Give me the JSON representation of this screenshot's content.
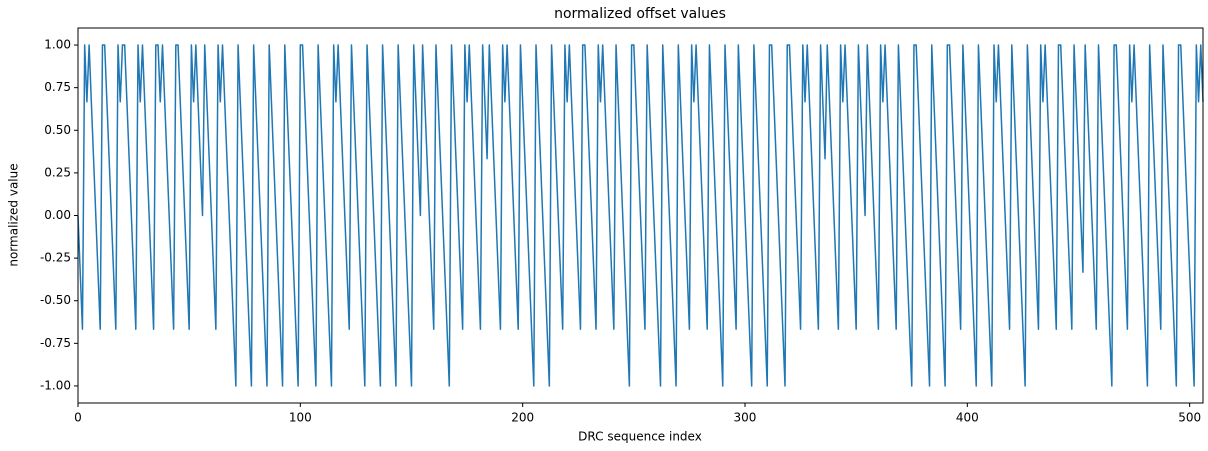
{
  "chart_data": {
    "type": "line",
    "title": "normalized offset values",
    "xlabel": "DRC sequence index",
    "ylabel": "normalized value",
    "color": "#1f77b4",
    "xlim": [
      0,
      506
    ],
    "ylim": [
      -1.1,
      1.1
    ],
    "xticks": [
      0,
      100,
      200,
      300,
      400,
      500
    ],
    "yticks": [
      {
        "value": -1,
        "label": "-1.00"
      },
      {
        "value": -0.75,
        "label": "-0.75"
      },
      {
        "value": -0.5,
        "label": "-0.50"
      },
      {
        "value": -0.25,
        "label": "-0.25"
      },
      {
        "value": 0,
        "label": "0.00"
      },
      {
        "value": 0.25,
        "label": "0.25"
      },
      {
        "value": 0.5,
        "label": "0.50"
      },
      {
        "value": 0.75,
        "label": "0.75"
      },
      {
        "value": 1,
        "label": "1.00"
      }
    ],
    "x": [
      0,
      1,
      2,
      3,
      4,
      5,
      6,
      7,
      8,
      9,
      10,
      11,
      12,
      13,
      14,
      15,
      16,
      17,
      18,
      19,
      20,
      21,
      22,
      23,
      24,
      25,
      26,
      27,
      28,
      29,
      30,
      31,
      32,
      33,
      34,
      35,
      36,
      37,
      38,
      39,
      40,
      41,
      42,
      43,
      44,
      45,
      46,
      47,
      48,
      49,
      50,
      51,
      52,
      53,
      54,
      55,
      56,
      57,
      58,
      59,
      60,
      61,
      62,
      63,
      64,
      65,
      66,
      67,
      68,
      69,
      70,
      71,
      72,
      73,
      74,
      75,
      76,
      77,
      78,
      79,
      80,
      81,
      82,
      83,
      84,
      85,
      86,
      87,
      88,
      89,
      90,
      91,
      92,
      93,
      94,
      95,
      96,
      97,
      98,
      99,
      100,
      101,
      102,
      103,
      104,
      105,
      106,
      107,
      108,
      109,
      110,
      111,
      112,
      113,
      114,
      115,
      116,
      117,
      118,
      119,
      120,
      121,
      122,
      123,
      124,
      125,
      126,
      127,
      128,
      129,
      130,
      131,
      132,
      133,
      134,
      135,
      136,
      137,
      138,
      139,
      140,
      141,
      142,
      143,
      144,
      145,
      146,
      147,
      148,
      149,
      150,
      151,
      152,
      153,
      154,
      155,
      156,
      157,
      158,
      159,
      160,
      161,
      162,
      163,
      164,
      165,
      166,
      167,
      168,
      169,
      170,
      171,
      172,
      173,
      174,
      175,
      176,
      177,
      178,
      179,
      180,
      181,
      182,
      183,
      184,
      185,
      186,
      187,
      188,
      189,
      190,
      191,
      192,
      193,
      194,
      195,
      196,
      197,
      198,
      199,
      200,
      201,
      202,
      203,
      204,
      205,
      206,
      207,
      208,
      209,
      210,
      211,
      212,
      213,
      214,
      215,
      216,
      217,
      218,
      219,
      220,
      221,
      222,
      223,
      224,
      225,
      226,
      227,
      228,
      229,
      230,
      231,
      232,
      233,
      234,
      235,
      236,
      237,
      238,
      239,
      240,
      241,
      242,
      243,
      244,
      245,
      246,
      247,
      248,
      249,
      250,
      251,
      252,
      253,
      254,
      255,
      256,
      257,
      258,
      259,
      260,
      261,
      262,
      263,
      264,
      265,
      266,
      267,
      268,
      269,
      270,
      271,
      272,
      273,
      274,
      275,
      276,
      277,
      278,
      279,
      280,
      281,
      282,
      283,
      284,
      285,
      286,
      287,
      288,
      289,
      290,
      291,
      292,
      293,
      294,
      295,
      296,
      297,
      298,
      299,
      300,
      301,
      302,
      303,
      304,
      305,
      306,
      307,
      308,
      309,
      310,
      311,
      312,
      313,
      314,
      315,
      316,
      317,
      318,
      319,
      320,
      321,
      322,
      323,
      324,
      325,
      326,
      327,
      328,
      329,
      330,
      331,
      332,
      333,
      334,
      335,
      336,
      337,
      338,
      339,
      340,
      341,
      342,
      343,
      344,
      345,
      346,
      347,
      348,
      349,
      350,
      351,
      352,
      353,
      354,
      355,
      356,
      357,
      358,
      359,
      360,
      361,
      362,
      363,
      364,
      365,
      366,
      367,
      368,
      369,
      370,
      371,
      372,
      373,
      374,
      375,
      376,
      377,
      378,
      379,
      380,
      381,
      382,
      383,
      384,
      385,
      386,
      387,
      388,
      389,
      390,
      391,
      392,
      393,
      394,
      395,
      396,
      397,
      398,
      399,
      400,
      401,
      402,
      403,
      404,
      405,
      406,
      407,
      408,
      409,
      410,
      411,
      412,
      413,
      414,
      415,
      416,
      417,
      418,
      419,
      420,
      421,
      422,
      423,
      424,
      425,
      426,
      427,
      428,
      429,
      430,
      431,
      432,
      433,
      434,
      435,
      436,
      437,
      438,
      439,
      440,
      441,
      442,
      443,
      444,
      445,
      446,
      447,
      448,
      449,
      450,
      451,
      452,
      453,
      454,
      455,
      456,
      457,
      458,
      459,
      460,
      461,
      462,
      463,
      464,
      465,
      466,
      467,
      468,
      469,
      470,
      471,
      472,
      473,
      474,
      475,
      476,
      477,
      478,
      479,
      480,
      481,
      482,
      483,
      484,
      485,
      486,
      487,
      488,
      489,
      490,
      491,
      492,
      493,
      494,
      495,
      496,
      497,
      498,
      499,
      500,
      501,
      502,
      503,
      504,
      505,
      506
    ],
    "values": [
      0,
      -0.333,
      -0.667,
      1,
      0.667,
      1,
      0.667,
      0.333,
      0,
      -0.333,
      -0.667,
      1,
      1,
      0.667,
      0.333,
      0,
      -0.333,
      -0.667,
      1,
      0.667,
      1,
      1,
      0.667,
      0.333,
      0,
      -0.333,
      -0.667,
      1,
      0.667,
      1,
      0.667,
      0.333,
      0,
      -0.333,
      -0.667,
      1,
      1,
      0.667,
      1,
      0.667,
      0.333,
      0,
      -0.333,
      -0.667,
      1,
      1,
      0.667,
      0.333,
      0,
      -0.333,
      -0.667,
      1,
      0.667,
      1,
      0.667,
      0.333,
      0,
      1,
      0.667,
      0.333,
      0,
      -0.333,
      -0.667,
      1,
      0.667,
      1,
      0.667,
      0.333,
      0,
      -0.333,
      -0.667,
      -1,
      1,
      0.667,
      0.333,
      0,
      -0.333,
      -0.667,
      -1,
      1,
      0.667,
      0.333,
      0,
      -0.333,
      -0.667,
      -1,
      1,
      0.667,
      0.333,
      0,
      -0.333,
      -0.667,
      -1,
      1,
      0.667,
      0.333,
      0,
      -0.333,
      -0.667,
      -1,
      1,
      1,
      0.667,
      0.333,
      0,
      -0.333,
      -0.667,
      -1,
      1,
      0.667,
      0.333,
      0,
      -0.333,
      -0.667,
      -1,
      1,
      0.667,
      1,
      0.667,
      0.333,
      0,
      -0.333,
      -0.667,
      1,
      0.667,
      0.333,
      0,
      -0.333,
      -0.667,
      -1,
      1,
      0.667,
      0.333,
      0,
      -0.333,
      -0.667,
      -1,
      1,
      0.667,
      0.333,
      0,
      -0.333,
      -0.667,
      -1,
      1,
      0.667,
      0.333,
      0,
      -0.333,
      -0.667,
      -1,
      1,
      0.667,
      0.333,
      0,
      1,
      0.667,
      0.333,
      0,
      -0.333,
      -0.667,
      1,
      0.667,
      0.333,
      0,
      -0.333,
      -0.667,
      -1,
      1,
      0.667,
      0.333,
      0,
      -0.333,
      -0.667,
      1,
      0.667,
      1,
      0.667,
      0.333,
      0,
      -0.333,
      -0.667,
      1,
      0.667,
      0.333,
      1,
      0.667,
      0.333,
      0,
      -0.333,
      -0.667,
      1,
      0.667,
      1,
      0.667,
      0.333,
      0,
      -0.333,
      -0.667,
      1,
      0.667,
      0.333,
      0,
      -0.333,
      -0.667,
      -1,
      1,
      0.667,
      0.333,
      0,
      -0.333,
      -0.667,
      -1,
      1,
      0.667,
      0.333,
      0,
      -0.333,
      -0.667,
      1,
      0.667,
      1,
      0.667,
      0.333,
      0,
      -0.333,
      -0.667,
      1,
      1,
      0.667,
      0.333,
      0,
      -0.333,
      -0.667,
      1,
      0.667,
      1,
      0.667,
      0.333,
      0,
      -0.333,
      -0.667,
      1,
      0.667,
      0.333,
      0,
      -0.333,
      -0.667,
      -1,
      1,
      1,
      0.667,
      0.333,
      0,
      -0.333,
      -0.667,
      1,
      0.667,
      0.333,
      0,
      -0.333,
      -0.667,
      -1,
      1,
      0.667,
      0.333,
      0,
      -0.333,
      -0.667,
      -1,
      1,
      0.667,
      0.333,
      0,
      -0.333,
      -0.667,
      1,
      0.667,
      1,
      0.667,
      0.333,
      0,
      -0.333,
      -0.667,
      1,
      0.667,
      0.333,
      0,
      -0.333,
      -0.667,
      -1,
      1,
      0.667,
      0.333,
      0,
      -0.333,
      -0.667,
      1,
      0.667,
      0.333,
      0,
      -0.333,
      -0.667,
      -1,
      1,
      0.667,
      0.333,
      0,
      -0.333,
      -0.667,
      -1,
      1,
      1,
      0.667,
      0.333,
      0,
      -0.333,
      -0.667,
      -1,
      1,
      1,
      0.667,
      0.333,
      0,
      -0.333,
      -0.667,
      1,
      0.667,
      1,
      0.667,
      0.333,
      0,
      -0.333,
      -0.667,
      1,
      0.667,
      0.333,
      1,
      0.667,
      0.333,
      0,
      -0.333,
      -0.667,
      1,
      0.667,
      1,
      0.667,
      0.333,
      0,
      -0.333,
      -0.667,
      1,
      0.667,
      0.333,
      0,
      1,
      0.667,
      0.333,
      0,
      -0.333,
      -0.667,
      1,
      0.667,
      1,
      0.667,
      0.333,
      0,
      -0.333,
      -0.667,
      1,
      0.667,
      0.333,
      0,
      -0.333,
      -0.667,
      -1,
      1,
      1,
      0.667,
      0.333,
      0,
      -0.333,
      -0.667,
      -1,
      1,
      0.667,
      0.333,
      0,
      -0.333,
      -0.667,
      -1,
      1,
      1,
      0.667,
      0.333,
      0,
      -0.333,
      -0.667,
      1,
      0.667,
      0.333,
      0,
      -0.333,
      -0.667,
      -1,
      1,
      0.667,
      0.333,
      0,
      -0.333,
      -0.667,
      -1,
      1,
      0.667,
      1,
      0.667,
      0.333,
      0,
      -0.333,
      -0.667,
      1,
      0.667,
      0.333,
      0,
      -0.333,
      -0.667,
      -1,
      1,
      0.667,
      0.333,
      0,
      -0.333,
      -0.667,
      1,
      0.667,
      1,
      0.667,
      0.333,
      0,
      -0.333,
      -0.667,
      1,
      1,
      0.667,
      0.333,
      0,
      -0.333,
      -0.667,
      1,
      0.667,
      0.333,
      0,
      -0.333,
      1,
      0.667,
      0.333,
      0,
      -0.333,
      -0.667,
      1,
      0.667,
      0.333,
      0,
      -0.333,
      -0.667,
      -1,
      1,
      1,
      0.667,
      0.333,
      0,
      -0.333,
      -0.667,
      1,
      0.667,
      1,
      0.667,
      0.333,
      0,
      -0.333,
      -0.667,
      -1,
      1,
      0.667,
      0.333,
      0,
      -0.333,
      -0.667,
      1,
      0.667,
      0.333,
      0,
      -0.333,
      -0.667,
      -1,
      1,
      1,
      0.667,
      0.333,
      0,
      -0.333,
      -0.667,
      -1,
      1,
      0.667,
      1,
      0.667
    ]
  }
}
